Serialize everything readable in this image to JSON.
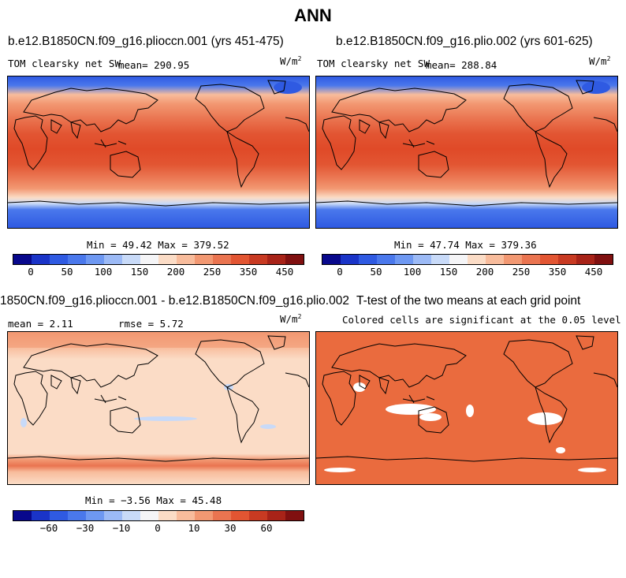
{
  "title": "ANN",
  "panels": {
    "top_left": {
      "title": "b.e12.B1850CN.f09_g16.plioccn.001 (yrs 451-475)",
      "variable": "TOM clearsky net SW",
      "mean_label": "mean= 290.95",
      "units": "W/m",
      "units_sup": "2",
      "minmax": "Min =  49.42 Max = 379.52"
    },
    "top_right": {
      "title": "b.e12.B1850CN.f09_g16.plio.002 (yrs 601-625)",
      "variable": "TOM clearsky net SW",
      "mean_label": "mean= 288.84",
      "units": "W/m",
      "units_sup": "2",
      "minmax": "Min =  47.74 Max = 379.36"
    },
    "bottom_left": {
      "title": "1850CN.f09_g16.plioccn.001 - b.e12.B1850CN.f09_g16.plio.002",
      "mean_label": "mean =    2.11",
      "rmse_label": "rmse =    5.72",
      "units": "W/m",
      "units_sup": "2",
      "minmax": "Min =  −3.56 Max =  45.48"
    },
    "bottom_right": {
      "title": "T-test of the two means at each grid point",
      "subtitle": "Colored cells are significant at the 0.05 level"
    }
  },
  "colorbars": {
    "absolute": {
      "colors": [
        "#08088c",
        "#1a34c8",
        "#2f5ae2",
        "#4a78ec",
        "#6e98f2",
        "#9cbaf6",
        "#c8daf8",
        "#f5f5f7",
        "#fbdcc6",
        "#f8bc9c",
        "#f29872",
        "#ea7450",
        "#e25532",
        "#c83a22",
        "#a82318",
        "#801010"
      ],
      "ticks": [
        "0",
        "50",
        "100",
        "150",
        "200",
        "250",
        "350",
        "450"
      ]
    },
    "difference": {
      "colors": [
        "#08088c",
        "#1a34c8",
        "#2f5ae2",
        "#4a78ec",
        "#6e98f2",
        "#9cbaf6",
        "#c8daf8",
        "#f5f5f7",
        "#fbdcc6",
        "#f8bc9c",
        "#f29872",
        "#ea7450",
        "#e25532",
        "#c83a22",
        "#a82318",
        "#801010"
      ],
      "ticks": [
        "−60",
        "−30",
        "−10",
        "0",
        "10",
        "30",
        "60"
      ]
    }
  }
}
